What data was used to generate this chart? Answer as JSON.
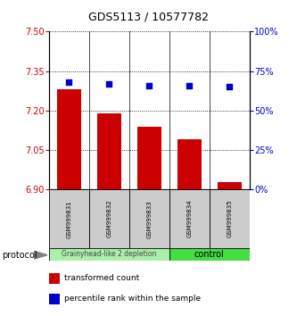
{
  "title": "GDS5113 / 10577782",
  "samples": [
    "GSM999831",
    "GSM999832",
    "GSM999833",
    "GSM999834",
    "GSM999835"
  ],
  "bar_values": [
    7.28,
    7.19,
    7.14,
    7.09,
    6.93
  ],
  "bar_base": 6.9,
  "percentile_values": [
    68,
    67,
    66,
    66,
    65
  ],
  "ylim_left": [
    6.9,
    7.5
  ],
  "ylim_right": [
    0,
    100
  ],
  "yticks_left": [
    6.9,
    7.05,
    7.2,
    7.35,
    7.5
  ],
  "yticks_right": [
    0,
    25,
    50,
    75,
    100
  ],
  "bar_color": "#cc0000",
  "point_color": "#0000cc",
  "group1_label": "Grainyhead-like 2 depletion",
  "group1_color": "#aaf0aa",
  "group2_label": "control",
  "group2_color": "#44dd44",
  "protocol_label": "protocol",
  "legend_bar_label": "transformed count",
  "legend_point_label": "percentile rank within the sample",
  "tick_color_left": "#cc0000",
  "tick_color_right": "#0000cc",
  "sample_box_color": "#cccccc",
  "title_fontsize": 9,
  "tick_fontsize": 7,
  "label_fontsize": 5,
  "group_fontsize": 5.5,
  "legend_fontsize": 6.5
}
